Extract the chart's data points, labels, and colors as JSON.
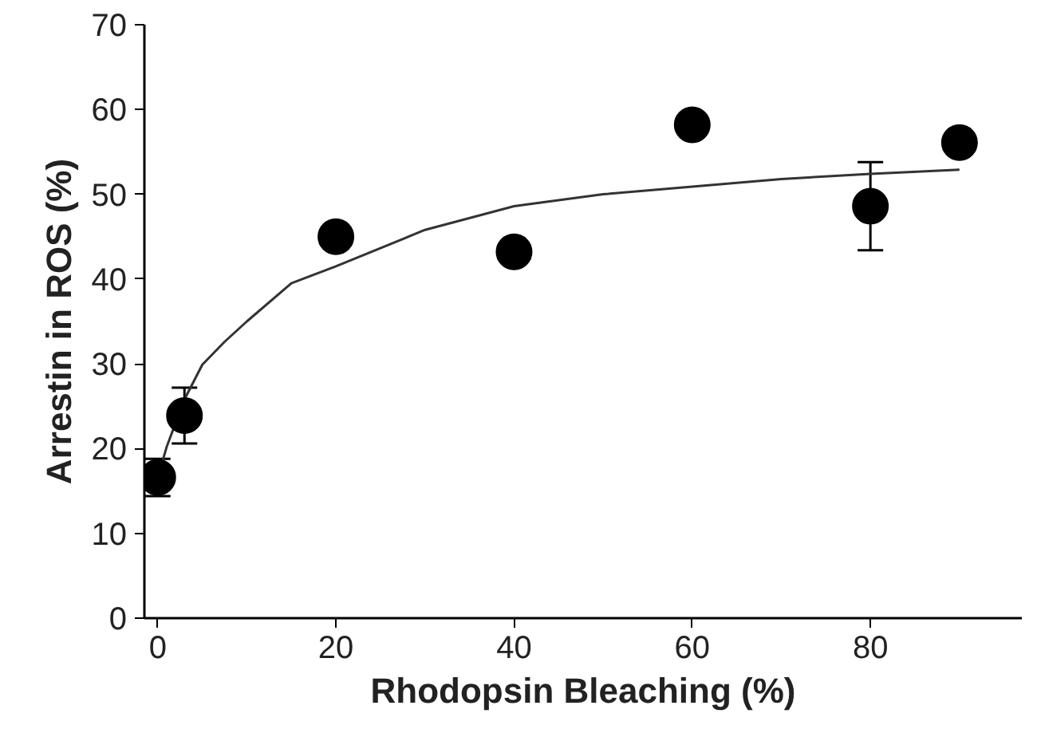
{
  "chart_data": {
    "type": "scatter",
    "xlabel": "Rhodopsin Bleaching (%)",
    "ylabel": "Arrestin in ROS (%)",
    "xlim": [
      -1.5,
      97
    ],
    "ylim": [
      0,
      70
    ],
    "xticks": [
      0,
      20,
      40,
      60,
      80
    ],
    "yticks": [
      0,
      10,
      20,
      30,
      40,
      50,
      60,
      70
    ],
    "grid": false,
    "series": [
      {
        "color": "#000000",
        "marker": "circle",
        "x": [
          0,
          3,
          20,
          40,
          60,
          80,
          90
        ],
        "values": [
          16.6,
          23.9,
          45.0,
          43.2,
          58.2,
          48.6,
          56.1
        ],
        "errors": [
          2.2,
          3.3,
          null,
          null,
          null,
          5.2,
          null
        ]
      },
      {
        "type": "line",
        "color": "#333333",
        "line_style": "solid",
        "marker": "none",
        "x": [
          0,
          1,
          2,
          3,
          5,
          7.5,
          10,
          15,
          20,
          30,
          40,
          50,
          60,
          70,
          80,
          90
        ],
        "values": [
          16.6,
          20.2,
          23.0,
          25.8,
          29.9,
          32.6,
          35.0,
          39.5,
          41.5,
          45.8,
          48.6,
          50.0,
          50.9,
          51.8,
          52.4,
          52.9
        ]
      }
    ]
  }
}
